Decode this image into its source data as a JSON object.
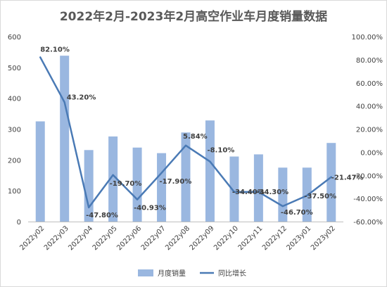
{
  "chart_data": {
    "type": "bar+line",
    "title": "2022年2月-2023年2月高空作业车月度销量数据",
    "categories": [
      "2022y02",
      "2022y03",
      "2022y04",
      "2022y05",
      "2022y06",
      "2022y07",
      "2022y08",
      "2022y09",
      "2022y10",
      "2022y11",
      "2022y12",
      "2023y01",
      "2023y02"
    ],
    "series": [
      {
        "name": "月度销量",
        "type": "bar",
        "axis": "left",
        "color": "#9ab7e0",
        "values": [
          325,
          538,
          232,
          276,
          240,
          222,
          289,
          328,
          211,
          218,
          175,
          175,
          255
        ]
      },
      {
        "name": "同比增长",
        "type": "line",
        "axis": "right",
        "color": "#4a7ab5",
        "values": [
          82.1,
          43.2,
          -47.8,
          -19.7,
          -40.93,
          -17.9,
          5.84,
          -8.1,
          -34.4,
          -34.3,
          -46.7,
          -37.5,
          -21.47
        ],
        "labels": [
          "82.10%",
          "43.20%",
          "-47.80%",
          "-19.70%",
          "-40.93%",
          "-17.90%",
          "5.84%",
          "-8.10%",
          "-34.40%",
          "-34.30%",
          "-46.70%",
          "-37.50%",
          "-21.47%"
        ]
      }
    ],
    "y_left": {
      "min": 0,
      "max": 600,
      "ticks": [
        "0",
        "100",
        "200",
        "300",
        "400",
        "500",
        "600"
      ]
    },
    "y_right": {
      "min": -60,
      "max": 100,
      "ticks": [
        "-60.00%",
        "-40.00%",
        "-20.00%",
        "0.00%",
        "20.00%",
        "40.00%",
        "60.00%",
        "80.00%",
        "100.00%"
      ]
    },
    "grid": false,
    "legend_position": "bottom"
  }
}
